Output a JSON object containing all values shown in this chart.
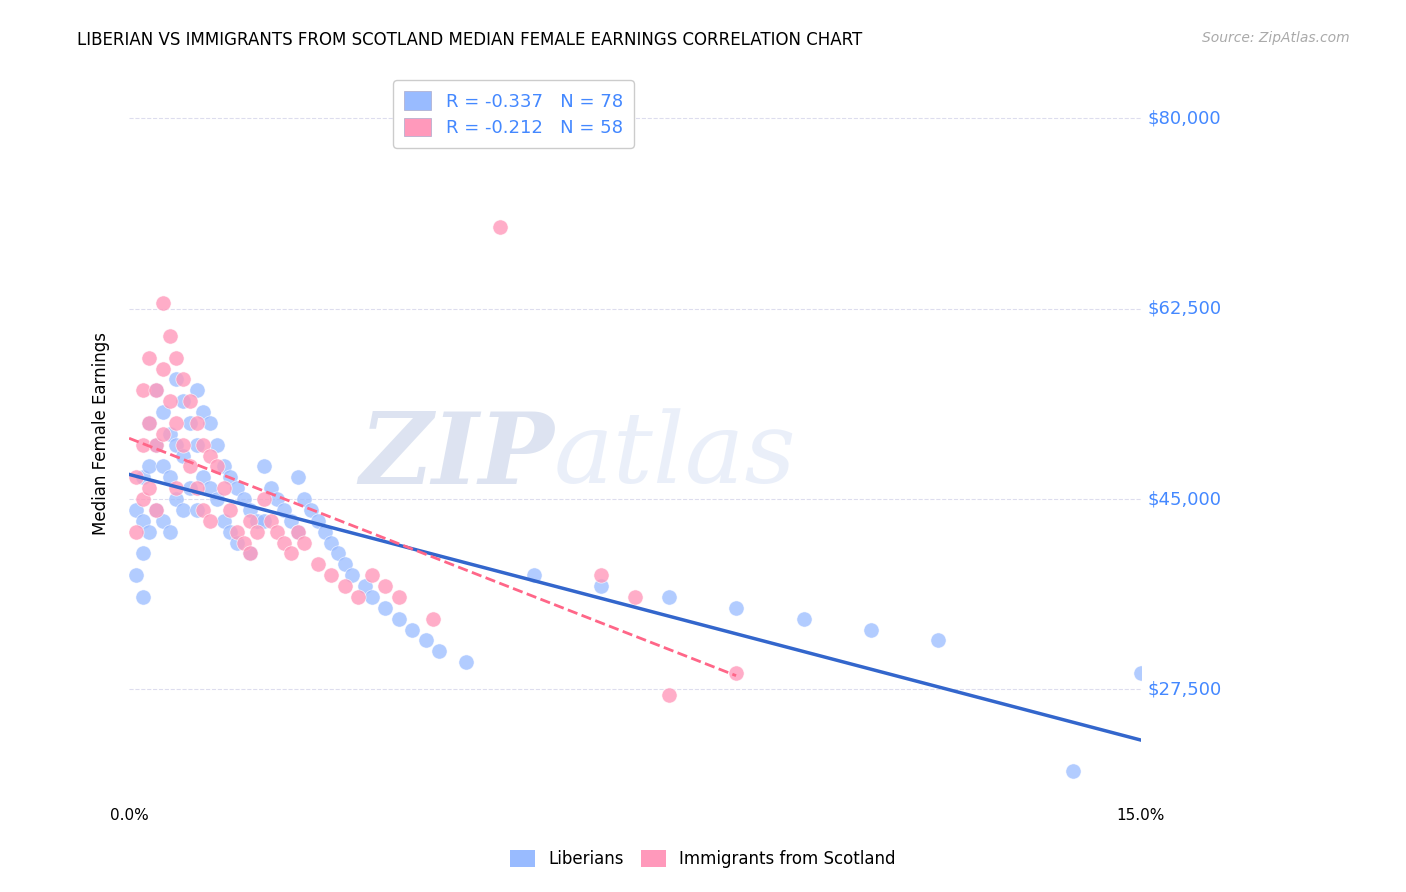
{
  "title": "LIBERIAN VS IMMIGRANTS FROM SCOTLAND MEDIAN FEMALE EARNINGS CORRELATION CHART",
  "source": "Source: ZipAtlas.com",
  "ylabel": "Median Female Earnings",
  "xlim": [
    0.0,
    0.15
  ],
  "ylim": [
    17000,
    85000
  ],
  "yticks": [
    27500,
    45000,
    62500,
    80000
  ],
  "ytick_labels": [
    "$27,500",
    "$45,000",
    "$62,500",
    "$80,000"
  ],
  "xticks": [
    0.0,
    0.025,
    0.05,
    0.075,
    0.1,
    0.125,
    0.15
  ],
  "xtick_labels": [
    "0.0%",
    "",
    "",
    "",
    "",
    "",
    "15.0%"
  ],
  "watermark_zip": "ZIP",
  "watermark_atlas": "atlas",
  "liberians_color": "#99bbff",
  "scotland_color": "#ff99bb",
  "trendline_liberian_color": "#3366cc",
  "trendline_scotland_color": "#ff6688",
  "background_color": "#ffffff",
  "grid_color": "#ddddee",
  "axis_label_color": "#4488ff",
  "liberians_x": [
    0.001,
    0.001,
    0.002,
    0.002,
    0.002,
    0.002,
    0.003,
    0.003,
    0.003,
    0.004,
    0.004,
    0.004,
    0.005,
    0.005,
    0.005,
    0.006,
    0.006,
    0.006,
    0.007,
    0.007,
    0.007,
    0.008,
    0.008,
    0.008,
    0.009,
    0.009,
    0.01,
    0.01,
    0.01,
    0.011,
    0.011,
    0.012,
    0.012,
    0.013,
    0.013,
    0.014,
    0.014,
    0.015,
    0.015,
    0.016,
    0.016,
    0.017,
    0.018,
    0.018,
    0.019,
    0.02,
    0.02,
    0.021,
    0.022,
    0.023,
    0.024,
    0.025,
    0.025,
    0.026,
    0.027,
    0.028,
    0.029,
    0.03,
    0.031,
    0.032,
    0.033,
    0.035,
    0.036,
    0.038,
    0.04,
    0.042,
    0.044,
    0.046,
    0.05,
    0.06,
    0.07,
    0.08,
    0.09,
    0.1,
    0.11,
    0.12,
    0.14,
    0.15
  ],
  "liberians_y": [
    44000,
    38000,
    47000,
    43000,
    40000,
    36000,
    52000,
    48000,
    42000,
    55000,
    50000,
    44000,
    53000,
    48000,
    43000,
    51000,
    47000,
    42000,
    56000,
    50000,
    45000,
    54000,
    49000,
    44000,
    52000,
    46000,
    55000,
    50000,
    44000,
    53000,
    47000,
    52000,
    46000,
    50000,
    45000,
    48000,
    43000,
    47000,
    42000,
    46000,
    41000,
    45000,
    44000,
    40000,
    43000,
    48000,
    43000,
    46000,
    45000,
    44000,
    43000,
    47000,
    42000,
    45000,
    44000,
    43000,
    42000,
    41000,
    40000,
    39000,
    38000,
    37000,
    36000,
    35000,
    34000,
    33000,
    32000,
    31000,
    30000,
    38000,
    37000,
    36000,
    35000,
    34000,
    33000,
    32000,
    20000,
    29000
  ],
  "scotland_x": [
    0.001,
    0.001,
    0.002,
    0.002,
    0.002,
    0.003,
    0.003,
    0.003,
    0.004,
    0.004,
    0.004,
    0.005,
    0.005,
    0.005,
    0.006,
    0.006,
    0.007,
    0.007,
    0.007,
    0.008,
    0.008,
    0.009,
    0.009,
    0.01,
    0.01,
    0.011,
    0.011,
    0.012,
    0.012,
    0.013,
    0.014,
    0.015,
    0.016,
    0.017,
    0.018,
    0.018,
    0.019,
    0.02,
    0.021,
    0.022,
    0.023,
    0.024,
    0.025,
    0.026,
    0.028,
    0.03,
    0.032,
    0.034,
    0.036,
    0.038,
    0.04,
    0.045,
    0.055,
    0.07,
    0.075,
    0.08,
    0.09
  ],
  "scotland_y": [
    47000,
    42000,
    55000,
    50000,
    45000,
    58000,
    52000,
    46000,
    55000,
    50000,
    44000,
    63000,
    57000,
    51000,
    60000,
    54000,
    58000,
    52000,
    46000,
    56000,
    50000,
    54000,
    48000,
    52000,
    46000,
    50000,
    44000,
    49000,
    43000,
    48000,
    46000,
    44000,
    42000,
    41000,
    43000,
    40000,
    42000,
    45000,
    43000,
    42000,
    41000,
    40000,
    42000,
    41000,
    39000,
    38000,
    37000,
    36000,
    38000,
    37000,
    36000,
    34000,
    70000,
    38000,
    36000,
    27000,
    29000
  ]
}
